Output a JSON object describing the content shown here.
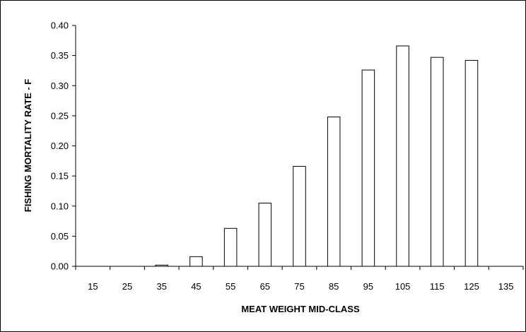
{
  "chart_data": {
    "type": "bar",
    "title": "",
    "xlabel": "MEAT WEIGHT MID-CLASS",
    "ylabel": "FISHING MORTALITY RATE  - F",
    "categories": [
      "15",
      "25",
      "35",
      "45",
      "55",
      "65",
      "75",
      "85",
      "95",
      "105",
      "115",
      "125",
      "135"
    ],
    "values": [
      0.0,
      0.0,
      0.002,
      0.016,
      0.063,
      0.105,
      0.166,
      0.248,
      0.326,
      0.366,
      0.347,
      0.342,
      0.0
    ],
    "ylim": [
      0,
      0.4
    ],
    "yticks": [
      "0.00",
      "0.05",
      "0.10",
      "0.15",
      "0.20",
      "0.25",
      "0.30",
      "0.35",
      "0.40"
    ],
    "grid": false,
    "legend": "none",
    "colors": {
      "bar_fill": "#ffffff",
      "bar_stroke": "#000000"
    }
  }
}
